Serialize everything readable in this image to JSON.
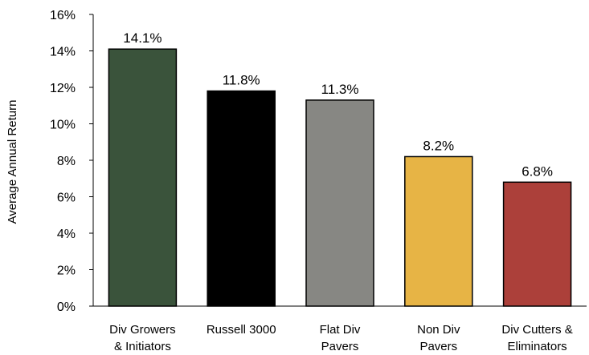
{
  "chart_data": {
    "type": "bar",
    "title": "",
    "xlabel": "",
    "ylabel": "Average Annual Return",
    "ylim": [
      0,
      16
    ],
    "yticks": [
      "0%",
      "2%",
      "4%",
      "6%",
      "8%",
      "10%",
      "12%",
      "14%",
      "16%"
    ],
    "categories": [
      [
        "Div Growers",
        "& Initiators"
      ],
      [
        "Russell 3000"
      ],
      [
        "Flat Div",
        "Pavers"
      ],
      [
        "Non Div",
        "Pavers"
      ],
      [
        "Div Cutters &",
        "Eliminators"
      ]
    ],
    "values": [
      14.1,
      11.8,
      11.3,
      8.2,
      6.8
    ],
    "data_labels": [
      "14.1%",
      "11.8%",
      "11.3%",
      "8.2%",
      "6.8%"
    ],
    "colors": [
      "#3a533b",
      "#000000",
      "#878783",
      "#e7b445",
      "#ac403a"
    ],
    "grid": false,
    "legend": "none"
  }
}
